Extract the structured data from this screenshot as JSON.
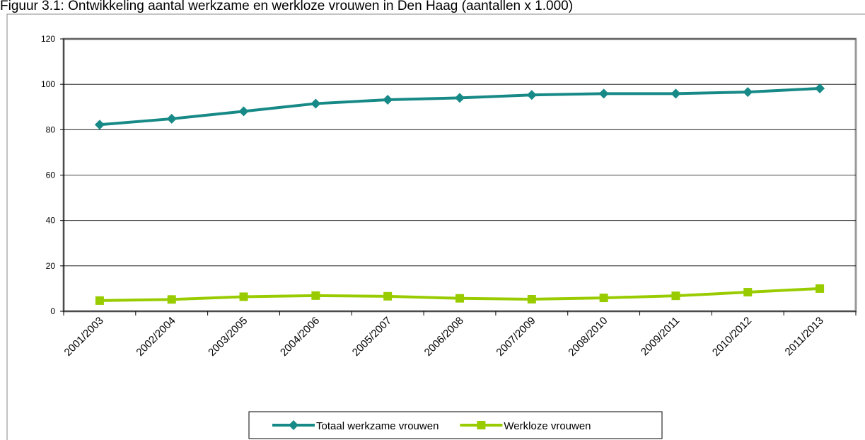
{
  "chart_data": {
    "type": "line",
    "title": "Figuur 3.1: Ontwikkeling aantal werkzame en werkloze vrouwen in Den Haag (aantallen x 1.000)",
    "categories": [
      "2001/2003",
      "2002/2004",
      "2003/2005",
      "2004/2006",
      "2005/2007",
      "2006/2008",
      "2007/2009",
      "2008/2010",
      "2009/2011",
      "2010/2012",
      "2011/2013"
    ],
    "series": [
      {
        "name": "Totaal werkzame vrouwen",
        "color": "#178a87",
        "marker": "diamond",
        "values": [
          82.2,
          84.8,
          88.1,
          91.5,
          93.2,
          94.0,
          95.3,
          95.9,
          95.9,
          96.6,
          98.2
        ]
      },
      {
        "name": "Werkloze vrouwen",
        "color": "#99cc00",
        "marker": "square",
        "values": [
          4.7,
          5.2,
          6.4,
          6.9,
          6.6,
          5.7,
          5.3,
          5.9,
          6.8,
          8.4,
          10.0
        ]
      }
    ],
    "ylim": [
      0,
      120
    ],
    "yticks": [
      0,
      20,
      40,
      60,
      80,
      100,
      120
    ],
    "grid": true,
    "legend": "bottom"
  }
}
